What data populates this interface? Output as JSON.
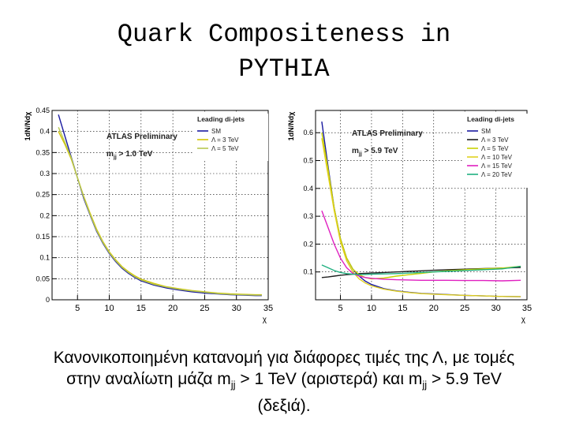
{
  "title_line1": "Quark Compositeness in",
  "title_line2": "PYTHIA",
  "caption": {
    "line1": "Κανονικοποιημένη κατανομή για διάφορες τιμές της Λ, με τομές",
    "line2_a": "στην αναλίωτη μάζα m",
    "line2_sub1": "jj",
    "line2_b": " > 1 TeV (αριστερά) και m",
    "line2_sub2": "jj",
    "line2_c": " > 5.9 TeV",
    "line3": "(δεξιά)."
  },
  "chart_data": [
    {
      "type": "line",
      "ylabel": "1dN/Ndχ",
      "xlabel": "χ",
      "xlim": [
        1,
        35
      ],
      "ylim": [
        0,
        0.45
      ],
      "xticks": [
        5,
        10,
        15,
        20,
        25,
        30,
        35
      ],
      "yticks": [
        0,
        0.05,
        0.1,
        0.15,
        0.2,
        0.25,
        0.3,
        0.35,
        0.4,
        0.45
      ],
      "grid": true,
      "legend_title": "Leading di-jets",
      "legend_position": "top-right",
      "annotations": [
        "ATLAS Preliminary",
        "m",
        "jj",
        " > 1.0 TeV"
      ],
      "x": [
        2,
        3,
        4,
        5,
        6,
        7,
        8,
        9,
        10,
        11,
        12,
        13,
        14,
        15,
        17,
        19,
        21,
        23,
        25,
        27,
        29,
        31,
        33,
        34
      ],
      "series": [
        {
          "name": "SM",
          "color": "#1a1aa0",
          "values": [
            0.44,
            0.39,
            0.34,
            0.29,
            0.24,
            0.2,
            0.163,
            0.134,
            0.11,
            0.091,
            0.075,
            0.063,
            0.053,
            0.045,
            0.035,
            0.028,
            0.023,
            0.019,
            0.016,
            0.014,
            0.012,
            0.011,
            0.01,
            0.01
          ]
        },
        {
          "name": "Λ = 3 TeV",
          "color": "#d4c400",
          "values": [
            0.4,
            0.37,
            0.335,
            0.29,
            0.245,
            0.205,
            0.168,
            0.138,
            0.114,
            0.095,
            0.079,
            0.067,
            0.057,
            0.049,
            0.039,
            0.031,
            0.026,
            0.022,
            0.019,
            0.016,
            0.014,
            0.013,
            0.012,
            0.012
          ]
        },
        {
          "name": "Λ = 5 TeV",
          "color": "#b8c850",
          "values": [
            0.41,
            0.375,
            0.338,
            0.29,
            0.243,
            0.202,
            0.165,
            0.136,
            0.112,
            0.093,
            0.077,
            0.065,
            0.055,
            0.047,
            0.037,
            0.03,
            0.025,
            0.021,
            0.018,
            0.015,
            0.013,
            0.012,
            0.011,
            0.011
          ]
        }
      ]
    },
    {
      "type": "line",
      "ylabel": "1dN/Ndχ",
      "xlabel": "χ",
      "xlim": [
        1,
        35
      ],
      "ylim": [
        0,
        0.68
      ],
      "xticks": [
        5,
        10,
        15,
        20,
        25,
        30,
        35
      ],
      "yticks": [
        0.1,
        0.2,
        0.3,
        0.4,
        0.5,
        0.6
      ],
      "grid": true,
      "legend_title": "Leading di-jets",
      "legend_position": "top-right",
      "annotations": [
        "ATLAS Preliminary",
        "m",
        "jj",
        " > 5.9 TeV"
      ],
      "x": [
        2,
        3,
        4,
        5,
        6,
        7,
        8,
        9,
        10,
        12,
        14,
        16,
        18,
        20,
        22,
        25,
        28,
        31,
        34
      ],
      "series": [
        {
          "name": "SM",
          "color": "#1a1aa0",
          "values": [
            0.64,
            0.48,
            0.33,
            0.22,
            0.15,
            0.11,
            0.085,
            0.067,
            0.055,
            0.04,
            0.032,
            0.027,
            0.023,
            0.021,
            0.019,
            0.016,
            0.014,
            0.012,
            0.011
          ]
        },
        {
          "name": "Λ = 3 TeV",
          "color": "#202020",
          "values": [
            0.08,
            0.082,
            0.085,
            0.088,
            0.09,
            0.092,
            0.094,
            0.095,
            0.096,
            0.098,
            0.1,
            0.102,
            0.104,
            0.106,
            0.108,
            0.11,
            0.112,
            0.114,
            0.116
          ]
        },
        {
          "name": "Λ = 5 TeV",
          "color": "#c8d200",
          "values": [
            0.6,
            0.47,
            0.33,
            0.22,
            0.15,
            0.11,
            0.09,
            0.08,
            0.075,
            0.078,
            0.085,
            0.09,
            0.095,
            0.1,
            0.104,
            0.108,
            0.111,
            0.114,
            0.12
          ]
        },
        {
          "name": "Λ = 10 TeV",
          "color": "#e0d020",
          "values": [
            0.58,
            0.45,
            0.32,
            0.21,
            0.14,
            0.1,
            0.075,
            0.06,
            0.05,
            0.038,
            0.031,
            0.026,
            0.022,
            0.02,
            0.018,
            0.016,
            0.014,
            0.012,
            0.011
          ]
        },
        {
          "name": "Λ = 15 TeV",
          "color": "#e020c0",
          "values": [
            0.32,
            0.26,
            0.2,
            0.15,
            0.115,
            0.095,
            0.085,
            0.08,
            0.077,
            0.074,
            0.072,
            0.071,
            0.07,
            0.07,
            0.07,
            0.069,
            0.069,
            0.068,
            0.07
          ]
        },
        {
          "name": "Λ = 20 TeV",
          "color": "#20b080",
          "values": [
            0.125,
            0.115,
            0.105,
            0.098,
            0.094,
            0.092,
            0.091,
            0.091,
            0.092,
            0.093,
            0.094,
            0.096,
            0.098,
            0.1,
            0.102,
            0.105,
            0.108,
            0.111,
            0.12
          ]
        }
      ]
    }
  ]
}
